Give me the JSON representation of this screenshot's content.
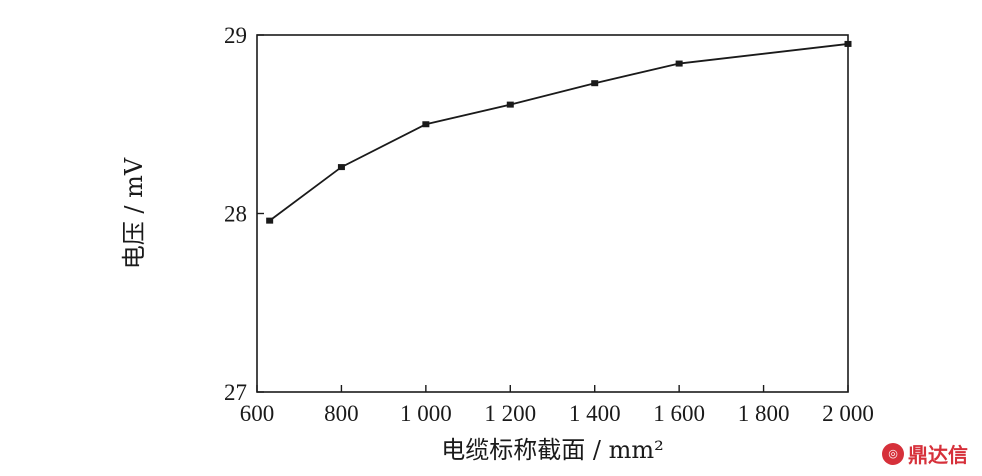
{
  "chart_data": {
    "type": "line",
    "xlabel": "电缆标称截面 / mm²",
    "ylabel": "电压 / mV",
    "xlim": [
      600,
      2000
    ],
    "ylim": [
      27,
      29
    ],
    "x_ticks": [
      600,
      800,
      1000,
      1200,
      1400,
      1600,
      1800,
      2000
    ],
    "x_tick_labels": [
      "600",
      "800",
      "1 000",
      "1 200",
      "1 400",
      "1 600",
      "1 800",
      "2 000"
    ],
    "y_ticks": [
      27,
      28,
      29
    ],
    "y_tick_labels": [
      "27",
      "28",
      "29"
    ],
    "grid": false,
    "series": [
      {
        "x": [
          630,
          800,
          1000,
          1200,
          1400,
          1600,
          2000
        ],
        "y": [
          27.96,
          28.26,
          28.5,
          28.61,
          28.73,
          28.84,
          28.95
        ],
        "color": "#1a1a1a"
      }
    ]
  },
  "watermark": {
    "icon": "dxd-logo-icon",
    "text": "鼎达信",
    "color": "#d6303a"
  }
}
